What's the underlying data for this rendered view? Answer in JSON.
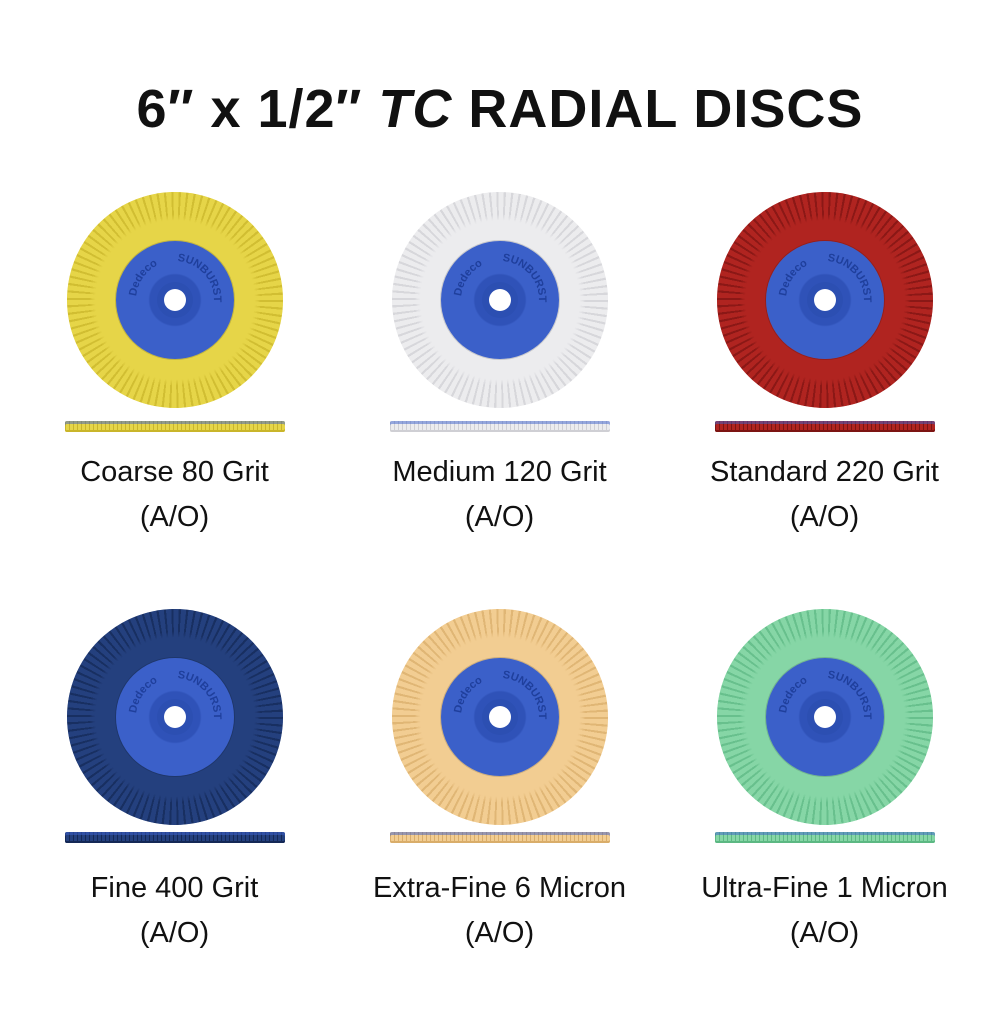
{
  "title": {
    "main_pre": "6″ x 1/2″ ",
    "main_italic": "TC",
    "main_post": " RADIAL DISCS"
  },
  "hub_logo": {
    "brand": "Dedeco",
    "product": "SUNBURST"
  },
  "discs": [
    {
      "name": "Coarse 80 Grit",
      "material": "(A/O)",
      "color": "#e6d548",
      "dark": "#c9b52a"
    },
    {
      "name": "Medium 120 Grit",
      "material": "(A/O)",
      "color": "#ececee",
      "dark": "#cfcfd4"
    },
    {
      "name": "Standard 220 Grit",
      "material": "(A/O)",
      "color": "#b02420",
      "dark": "#7c1412"
    },
    {
      "name": "Fine 400 Grit",
      "material": "(A/O)",
      "color": "#24407e",
      "dark": "#142856"
    },
    {
      "name": "Extra-Fine 6 Micron",
      "material": "(A/O)",
      "color": "#f2cd92",
      "dark": "#d9ad6a"
    },
    {
      "name": "Ultra-Fine 1 Micron",
      "material": "(A/O)",
      "color": "#86d6a6",
      "dark": "#5cb883"
    }
  ],
  "hub_color": "#3b60c9"
}
